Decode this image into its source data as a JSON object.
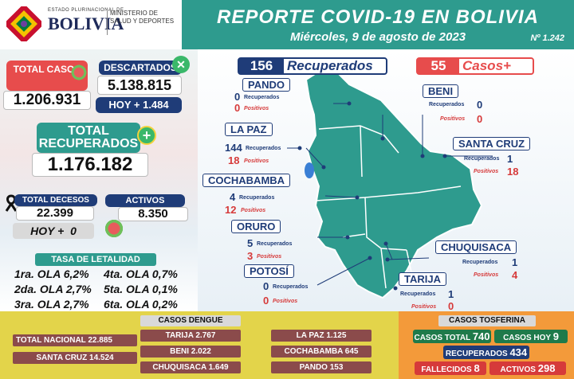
{
  "colors": {
    "teal": "#2e9b8e",
    "navy": "#1f3c78",
    "red": "#e74c4c",
    "dengue": "#8b4b4b",
    "tosferina_bg": "#f39a3a",
    "dengue_bg": "#e3d44a"
  },
  "logo": {
    "estado": "ESTADO PLURINACIONAL DE",
    "bolivia": "BOLIVIA",
    "ministerio": "MINISTERIO DE",
    "salud": "SALUD Y DEPORTES"
  },
  "header": {
    "title": "REPORTE COVID-19 EN BOLIVIA",
    "date": "Miércoles, 9 de agosto de 2023",
    "number": "Nº 1.242"
  },
  "summary": {
    "total_casos_label": "TOTAL CASOS",
    "total_casos": "1.206.931",
    "descartados_label": "DESCARTADOS",
    "descartados": "5.138.815",
    "hoy_descartados": "HOY + 1.484",
    "total_recuperados_label": "TOTAL RECUPERADOS",
    "total_recuperados": "1.176.182",
    "total_decesos_label": "TOTAL DECESOS",
    "total_decesos": "22.399",
    "hoy_decesos_label": "HOY +",
    "hoy_decesos": "0",
    "activos_label": "ACTIVOS",
    "activos": "8.350"
  },
  "letalidad": {
    "title": "TASA DE LETALIDAD",
    "rows": [
      {
        "a": "1ra. OLA 6,2%",
        "b": "4ta. OLA 0,7%"
      },
      {
        "a": "2da. OLA 2,7%",
        "b": "5ta. OLA 0,1%"
      },
      {
        "a": "3ra. OLA 2,7%",
        "b": "6ta. OLA 0,2%"
      }
    ]
  },
  "daily": {
    "recuperados_n": "156",
    "recuperados_l": "Recuperados",
    "casos_n": "55",
    "casos_l": "Casos+"
  },
  "labels": {
    "rec": "Recuperados",
    "pos": "Positivos"
  },
  "departments": {
    "pando": {
      "name": "PANDO",
      "rec": "0",
      "pos": "0"
    },
    "beni": {
      "name": "BENI",
      "rec": "0",
      "pos": "0"
    },
    "lapaz": {
      "name": "LA PAZ",
      "rec": "144",
      "pos": "18"
    },
    "santacruz": {
      "name": "SANTA CRUZ",
      "rec": "1",
      "pos": "18"
    },
    "cochabamba": {
      "name": "COCHABAMBA",
      "rec": "4",
      "pos": "12"
    },
    "oruro": {
      "name": "ORURO",
      "rec": "5",
      "pos": "3"
    },
    "potosi": {
      "name": "POTOSÍ",
      "rec": "0",
      "pos": "0"
    },
    "chuquisaca": {
      "name": "CHUQUISACA",
      "rec": "1",
      "pos": "4"
    },
    "tarija": {
      "name": "TARIJA",
      "rec": "1",
      "pos": "0"
    }
  },
  "dengue": {
    "title": "CASOS DENGUE",
    "total_nacional": "TOTAL NACIONAL  22.885",
    "santa_cruz": "SANTA CRUZ  14.524",
    "tarija": "TARIJA  2.767",
    "beni": "BENI  2.022",
    "chuquisaca": "CHUQUISACA  1.649",
    "la_paz": "LA PAZ  1.125",
    "cochabamba": "COCHABAMBA  645",
    "pando": "PANDO  153"
  },
  "tosferina": {
    "title": "CASOS TOSFERINA",
    "casos_total_l": "CASOS TOTAL",
    "casos_total": "740",
    "casos_hoy_l": "CASOS HOY",
    "casos_hoy": "9",
    "recuperados_l": "RECUPERADOS",
    "recuperados": "434",
    "fallecidos_l": "FALLECIDOS",
    "fallecidos": "8",
    "activos_l": "ACTIVOS",
    "activos": "298"
  }
}
